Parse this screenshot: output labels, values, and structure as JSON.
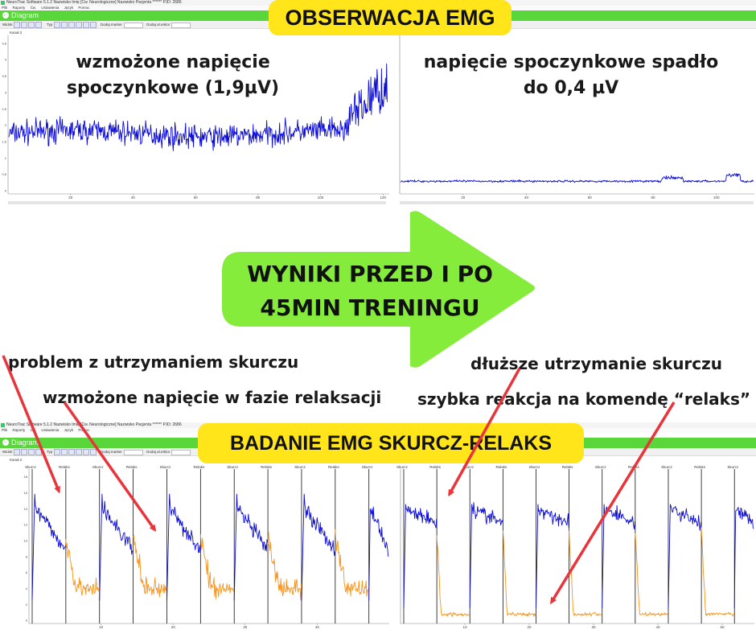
{
  "app": {
    "window_title": "NeuroTrac Software 5.1.2    Nazwisko Imię [Ćw. Neurologiczne]    Nazwisko Pacjenta ******    P.ID: 2686",
    "menu": [
      "Plik",
      "Raporty",
      "Ćw.",
      "Ustawienia",
      "Język",
      "Pomoc"
    ],
    "tab_title": "Diagram",
    "toolbar": {
      "view_label": "Widok",
      "type_label": "Typ",
      "marker_label": "Dodaj marker",
      "marker2_label": "Dodaj al.rektor"
    },
    "channel_label": "Kanał 2"
  },
  "banners": {
    "top": "OBSERWACJA EMG",
    "bottom": "BADANIE EMG SKURCZ-RELAKS"
  },
  "arrow_text": "WYNIKI PRZED I PO 45MIN TRENINGU",
  "annotations": {
    "top_left": "wzmożone napięcie spoczynkowe (1,9µV)",
    "top_right": "napięcie spoczynkowe spadło do 0,4 µV",
    "bottom_left_1": "problem z utrzymaniem skurczu",
    "bottom_left_2": "wzmożone napięcie w fazie relaksacji",
    "bottom_right_1": "dłuższe utrzymanie skurczu",
    "bottom_right_2": "szybka reakcja na komendę “relaks”"
  },
  "markers": {
    "contract": "Skurcz",
    "relax": "Relaks"
  },
  "colors": {
    "green": "#58d63a",
    "yellow": "#ffe51a",
    "arrow": "#86ec3c",
    "signal": "#0b0bd8",
    "relax_signal": "#f7941d",
    "red_arrow": "#e8343a"
  },
  "chart_data": [
    {
      "type": "line",
      "id": "observation-before",
      "x_ticks": [
        20,
        40,
        60,
        80,
        100,
        120
      ],
      "y_ticks": [
        "4,5",
        "4",
        "3,5",
        "3",
        "2,5",
        "2",
        "1,5",
        "1",
        "0,5",
        "0"
      ],
      "ylim": [
        0,
        5
      ],
      "xlim": [
        0,
        122
      ],
      "y_unit": "µV",
      "resting_level": 1.9
    },
    {
      "type": "line",
      "id": "observation-after",
      "x_ticks": [
        20,
        40,
        60,
        80,
        100
      ],
      "ylim": [
        0,
        5
      ],
      "xlim": [
        0,
        112
      ],
      "resting_level": 0.4
    },
    {
      "type": "line",
      "id": "contract-relax-before",
      "x_ticks": [
        10,
        20,
        30,
        40
      ],
      "y_ticks": [
        "18",
        "16",
        "14",
        "12",
        "10",
        "8",
        "6",
        "4",
        "2",
        "0"
      ],
      "ylim": [
        0,
        20
      ],
      "xlim": [
        0,
        50
      ],
      "marker_labels": [
        "Skurcz",
        "Relaks",
        "Skurcz",
        "Relaks",
        "Skurcz",
        "Relaks",
        "Skurcz",
        "Relaks",
        "Skurcz",
        "Relaks",
        "Skurcz"
      ]
    },
    {
      "type": "line",
      "id": "contract-relax-after",
      "x_ticks": [
        10,
        20,
        30,
        40,
        50
      ],
      "ylim": [
        0,
        20
      ],
      "xlim": [
        0,
        55
      ],
      "marker_labels": [
        "Skurcz",
        "Relaks",
        "Skurcz",
        "Relaks",
        "Skurcz",
        "Relaks",
        "Skurcz",
        "Relaks",
        "Skurcz",
        "Relaks",
        "Skurcz"
      ]
    }
  ]
}
